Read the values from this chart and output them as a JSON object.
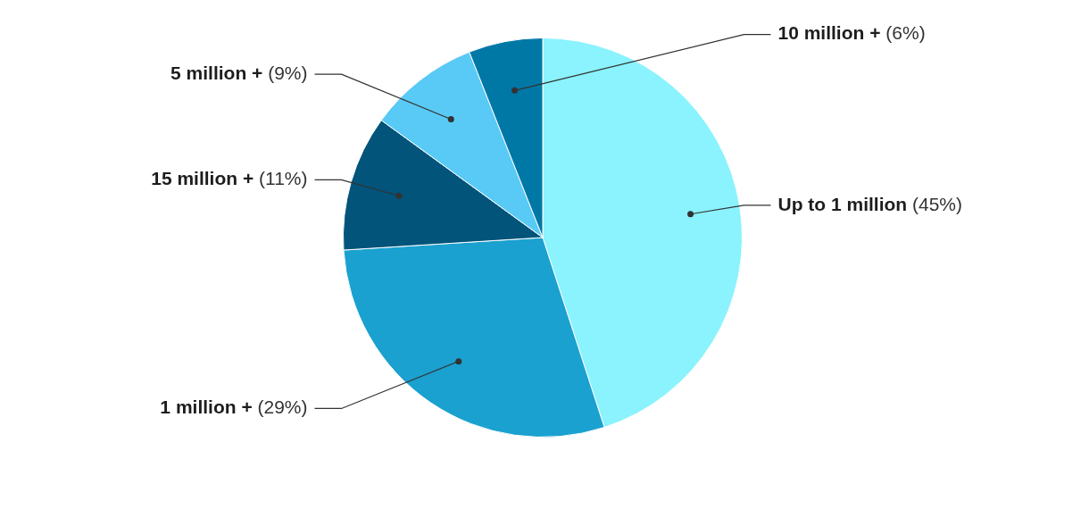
{
  "chart_data": {
    "type": "pie",
    "categories": [
      "Up to 1 million",
      "1 million +",
      "15 million +",
      "5 million +",
      "10 million +"
    ],
    "values": [
      45,
      29,
      11,
      9,
      6
    ],
    "colors": [
      "#8af3fd",
      "#1aa1cf",
      "#02547a",
      "#59caf5",
      "#0078a6"
    ],
    "value_labels": [
      "(45%)",
      "(29%)",
      "(11%)",
      "(9%)",
      "(6%)"
    ],
    "legend": false
  }
}
